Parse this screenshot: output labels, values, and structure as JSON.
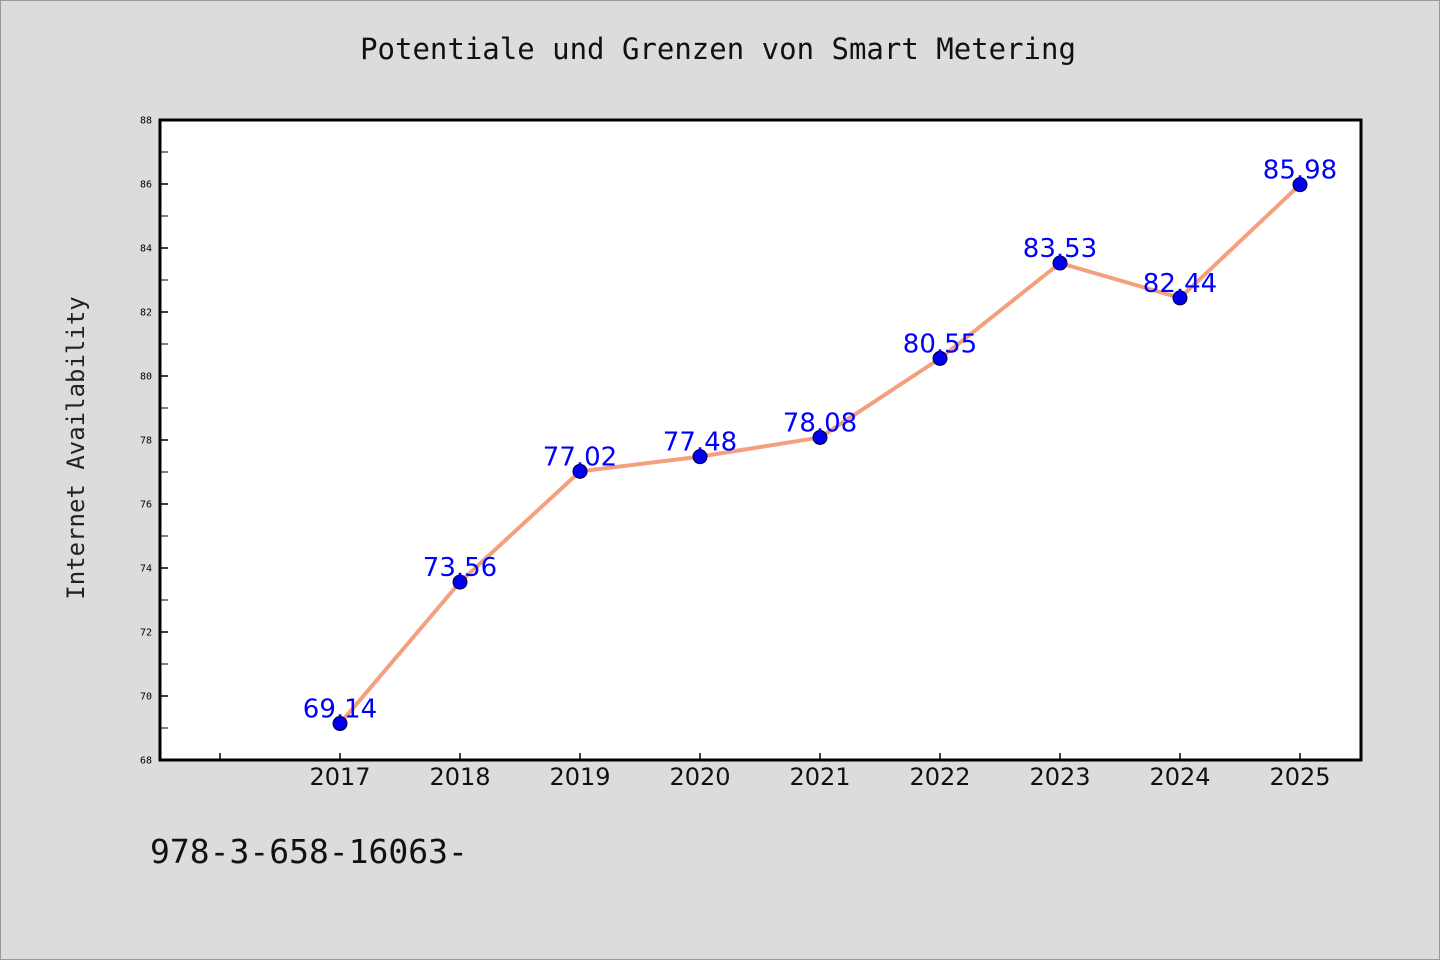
{
  "chart_data": {
    "type": "line",
    "title": "Potentiale und Grenzen von Smart Metering",
    "xlabel": "",
    "ylabel": "Internet Availability",
    "categories": [
      "2017",
      "2018",
      "2019",
      "2020",
      "2021",
      "2022",
      "2023",
      "2024",
      "2025"
    ],
    "series": [
      {
        "values": [
          69.14,
          73.56,
          77.02,
          77.48,
          78.08,
          80.55,
          83.53,
          82.44,
          85.98
        ],
        "line_color": "#f4a07f",
        "marker_color": "#0000ee"
      }
    ],
    "data_labels": [
      "69.14",
      "73.56",
      "77.02",
      "77.48",
      "78.08",
      "80.55",
      "83.53",
      "82.44",
      "85.98"
    ],
    "ylim": [
      68,
      88
    ],
    "yticks": [
      68,
      70,
      72,
      74,
      76,
      78,
      80,
      82,
      84,
      86,
      88
    ],
    "grid": false,
    "label_color": "#0000ff"
  },
  "footnote": "978-3-658-16063-"
}
